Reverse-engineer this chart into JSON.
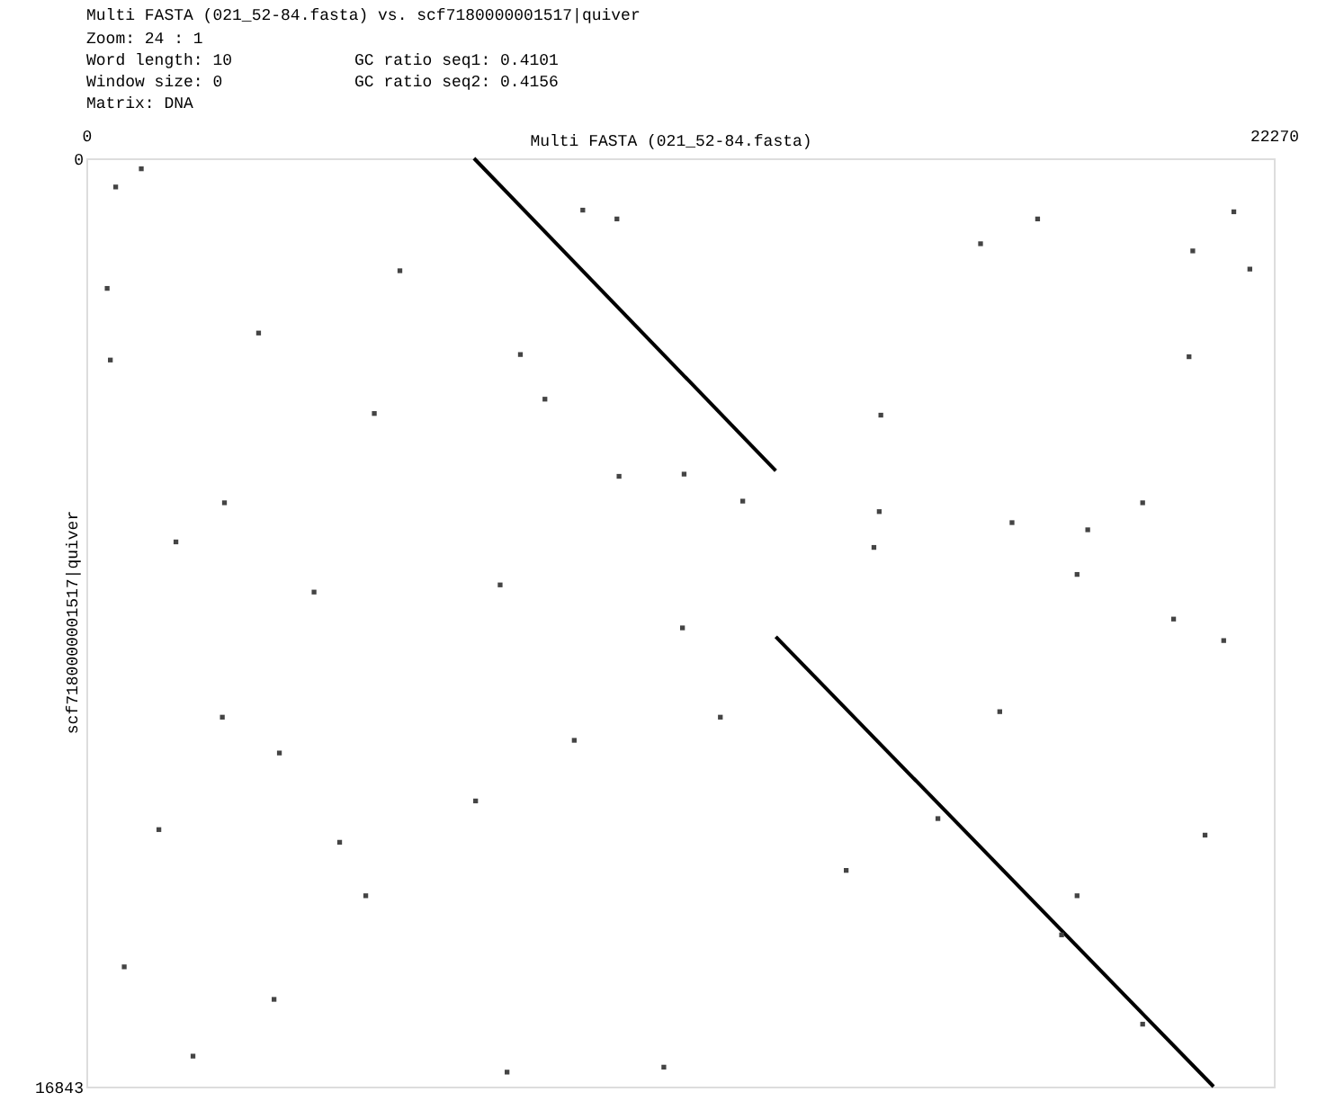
{
  "chart_data": {
    "type": "scatter",
    "title": "Multi FASTA (021_52-84.fasta) vs. scf7180000001517|quiver",
    "annotations": [
      "Zoom: 24 : 1",
      "Word length: 10",
      "Window size: 0",
      "Matrix: DNA",
      "GC ratio seq1: 0.4101",
      "GC ratio seq2: 0.4156"
    ],
    "xlabel": "Multi FASTA (021_52-84.fasta)",
    "ylabel": "scf7180000001517|quiver",
    "xlim": [
      0,
      22270
    ],
    "xticks": [
      0,
      22270
    ],
    "ylim": [
      16843,
      0
    ],
    "yticks": [
      0,
      16843
    ],
    "series": [
      {
        "type": "line",
        "color": "#000000",
        "x": [
          7270,
          12930
        ],
        "values": [
          0,
          5670
        ]
      },
      {
        "type": "line",
        "color": "#000000",
        "x": [
          12930,
          21140
        ],
        "values": [
          8680,
          16843
        ]
      },
      {
        "marker": "square",
        "color": "#444444",
        "x": [
          20750,
          21820,
          21520,
          14900,
          14870,
          17360,
          14770,
          18580,
          19810,
          18780,
          11180,
          7760,
          8600,
          9950,
          9310,
          8140,
          16770,
          17840,
          20980,
          18580,
          17130,
          11890,
          9150,
          7300,
          14250,
          10830,
          7890,
          19810,
          15970,
          18290,
          11210,
          9990,
          12310,
          21330,
          20390,
          20680,
          550,
          1030,
          390,
          3230,
          2590,
          1680,
          5400,
          2550,
          1360,
          710,
          3520,
          4270,
          5240,
          3620,
          2000,
          450,
          5880,
          4750
        ],
        "values": [
          1680,
          2010,
          970,
          4660,
          6410,
          6610,
          7060,
          7550,
          6250,
          6740,
          8520,
          7740,
          4370,
          1100,
          940,
          3560,
          1550,
          1100,
          12280,
          13380,
          10040,
          10140,
          10560,
          11660,
          12920,
          16490,
          16580,
          15710,
          11980,
          14090,
          5730,
          5770,
          6220,
          8750,
          8360,
          3600,
          520,
          190,
          2360,
          3170,
          6250,
          6960,
          4630,
          10140,
          12180,
          14670,
          15260,
          7870,
          13380,
          10790,
          16290,
          3660,
          2040,
          12410
        ]
      }
    ]
  }
}
